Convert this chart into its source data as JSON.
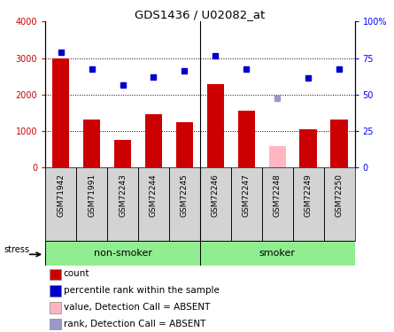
{
  "title": "GDS1436 / U02082_at",
  "samples": [
    "GSM71942",
    "GSM71991",
    "GSM72243",
    "GSM72244",
    "GSM72245",
    "GSM72246",
    "GSM72247",
    "GSM72248",
    "GSM72249",
    "GSM72250"
  ],
  "counts": [
    3000,
    1310,
    760,
    1460,
    1240,
    2280,
    1550,
    null,
    1040,
    1330
  ],
  "counts_absent": [
    null,
    null,
    null,
    null,
    null,
    null,
    null,
    580,
    null,
    null
  ],
  "ranks": [
    3160,
    2700,
    2260,
    2490,
    2640,
    3070,
    2700,
    null,
    2450,
    2700
  ],
  "ranks_absent": [
    null,
    null,
    null,
    null,
    null,
    null,
    null,
    1890,
    null,
    null
  ],
  "groups": [
    "non-smoker",
    "non-smoker",
    "non-smoker",
    "non-smoker",
    "non-smoker",
    "smoker",
    "smoker",
    "smoker",
    "smoker",
    "smoker"
  ],
  "bar_color_present": "#CC0000",
  "bar_color_absent": "#FFB6C1",
  "dot_color_present": "#0000CC",
  "dot_color_absent": "#9999CC",
  "ylim_left": [
    0,
    4000
  ],
  "ylim_right": [
    0,
    100
  ],
  "yticks_left": [
    0,
    1000,
    2000,
    3000,
    4000
  ],
  "ytick_labels_left": [
    "0",
    "1000",
    "2000",
    "3000",
    "4000"
  ],
  "yticks_right": [
    0,
    25,
    50,
    75,
    100
  ],
  "ytick_labels_right": [
    "0",
    "25",
    "50",
    "75",
    "100%"
  ],
  "stress_label": "stress",
  "non_smoker_label": "non-smoker",
  "smoker_label": "smoker",
  "group_fill": "#90EE90",
  "xtick_bg": "#D3D3D3",
  "legend_items": [
    {
      "label": "count",
      "color": "#CC0000"
    },
    {
      "label": "percentile rank within the sample",
      "color": "#0000CC"
    },
    {
      "label": "value, Detection Call = ABSENT",
      "color": "#FFB6C1"
    },
    {
      "label": "rank, Detection Call = ABSENT",
      "color": "#9999CC"
    }
  ]
}
